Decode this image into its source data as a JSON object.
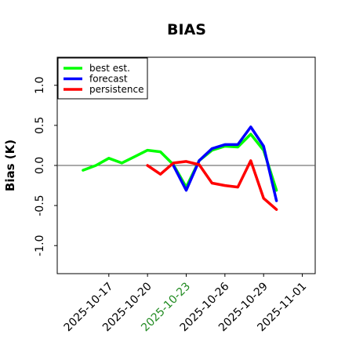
{
  "chart_data": {
    "type": "line",
    "title": "BIAS",
    "xlabel": "",
    "ylabel": "Bias (K)",
    "ylim": [
      -1.35,
      1.35
    ],
    "xlim": [
      "2025-10-13",
      "2025-11-02"
    ],
    "yticks": [
      "-1.0",
      "-0.5",
      "0.0",
      "0.5",
      "1.0"
    ],
    "xticks": [
      {
        "date": "2025-10-17",
        "label": "2025-10-17",
        "color": "#000000"
      },
      {
        "date": "2025-10-20",
        "label": "2025-10-20",
        "color": "#000000"
      },
      {
        "date": "2025-10-23",
        "label": "2025-10-23",
        "color": "#228b22"
      },
      {
        "date": "2025-10-26",
        "label": "2025-10-26",
        "color": "#000000"
      },
      {
        "date": "2025-10-29",
        "label": "2025-10-29",
        "color": "#000000"
      },
      {
        "date": "2025-11-01",
        "label": "2025-11-01",
        "color": "#000000"
      }
    ],
    "zero_line": true,
    "grid": false,
    "legend_position": "top-left",
    "series": [
      {
        "name": "best est.",
        "color": "#00ff00",
        "points": [
          {
            "x": "2025-10-15",
            "y": -0.06
          },
          {
            "x": "2025-10-16",
            "y": 0.0
          },
          {
            "x": "2025-10-17",
            "y": 0.09
          },
          {
            "x": "2025-10-18",
            "y": 0.03
          },
          {
            "x": "2025-10-19",
            "y": 0.11
          },
          {
            "x": "2025-10-20",
            "y": 0.19
          },
          {
            "x": "2025-10-21",
            "y": 0.17
          },
          {
            "x": "2025-10-22",
            "y": 0.01
          },
          {
            "x": "2025-10-23",
            "y": -0.27
          },
          {
            "x": "2025-10-24",
            "y": 0.06
          },
          {
            "x": "2025-10-25",
            "y": 0.19
          },
          {
            "x": "2025-10-26",
            "y": 0.24
          },
          {
            "x": "2025-10-27",
            "y": 0.23
          },
          {
            "x": "2025-10-28",
            "y": 0.39
          },
          {
            "x": "2025-10-29",
            "y": 0.19
          },
          {
            "x": "2025-10-30",
            "y": -0.31
          }
        ]
      },
      {
        "name": "forecast",
        "color": "#0000ff",
        "points": [
          {
            "x": "2025-10-22",
            "y": 0.0
          },
          {
            "x": "2025-10-23",
            "y": -0.31
          },
          {
            "x": "2025-10-24",
            "y": 0.06
          },
          {
            "x": "2025-10-25",
            "y": 0.21
          },
          {
            "x": "2025-10-26",
            "y": 0.26
          },
          {
            "x": "2025-10-27",
            "y": 0.26
          },
          {
            "x": "2025-10-28",
            "y": 0.48
          },
          {
            "x": "2025-10-29",
            "y": 0.24
          },
          {
            "x": "2025-10-30",
            "y": -0.44
          }
        ]
      },
      {
        "name": "persistence",
        "color": "#ff0000",
        "points": [
          {
            "x": "2025-10-20",
            "y": 0.0
          },
          {
            "x": "2025-10-21",
            "y": -0.11
          },
          {
            "x": "2025-10-22",
            "y": 0.03
          },
          {
            "x": "2025-10-23",
            "y": 0.05
          },
          {
            "x": "2025-10-24",
            "y": 0.01
          },
          {
            "x": "2025-10-25",
            "y": -0.22
          },
          {
            "x": "2025-10-26",
            "y": -0.25
          },
          {
            "x": "2025-10-27",
            "y": -0.27
          },
          {
            "x": "2025-10-28",
            "y": 0.06
          },
          {
            "x": "2025-10-29",
            "y": -0.41
          },
          {
            "x": "2025-10-30",
            "y": -0.55
          }
        ]
      }
    ]
  }
}
